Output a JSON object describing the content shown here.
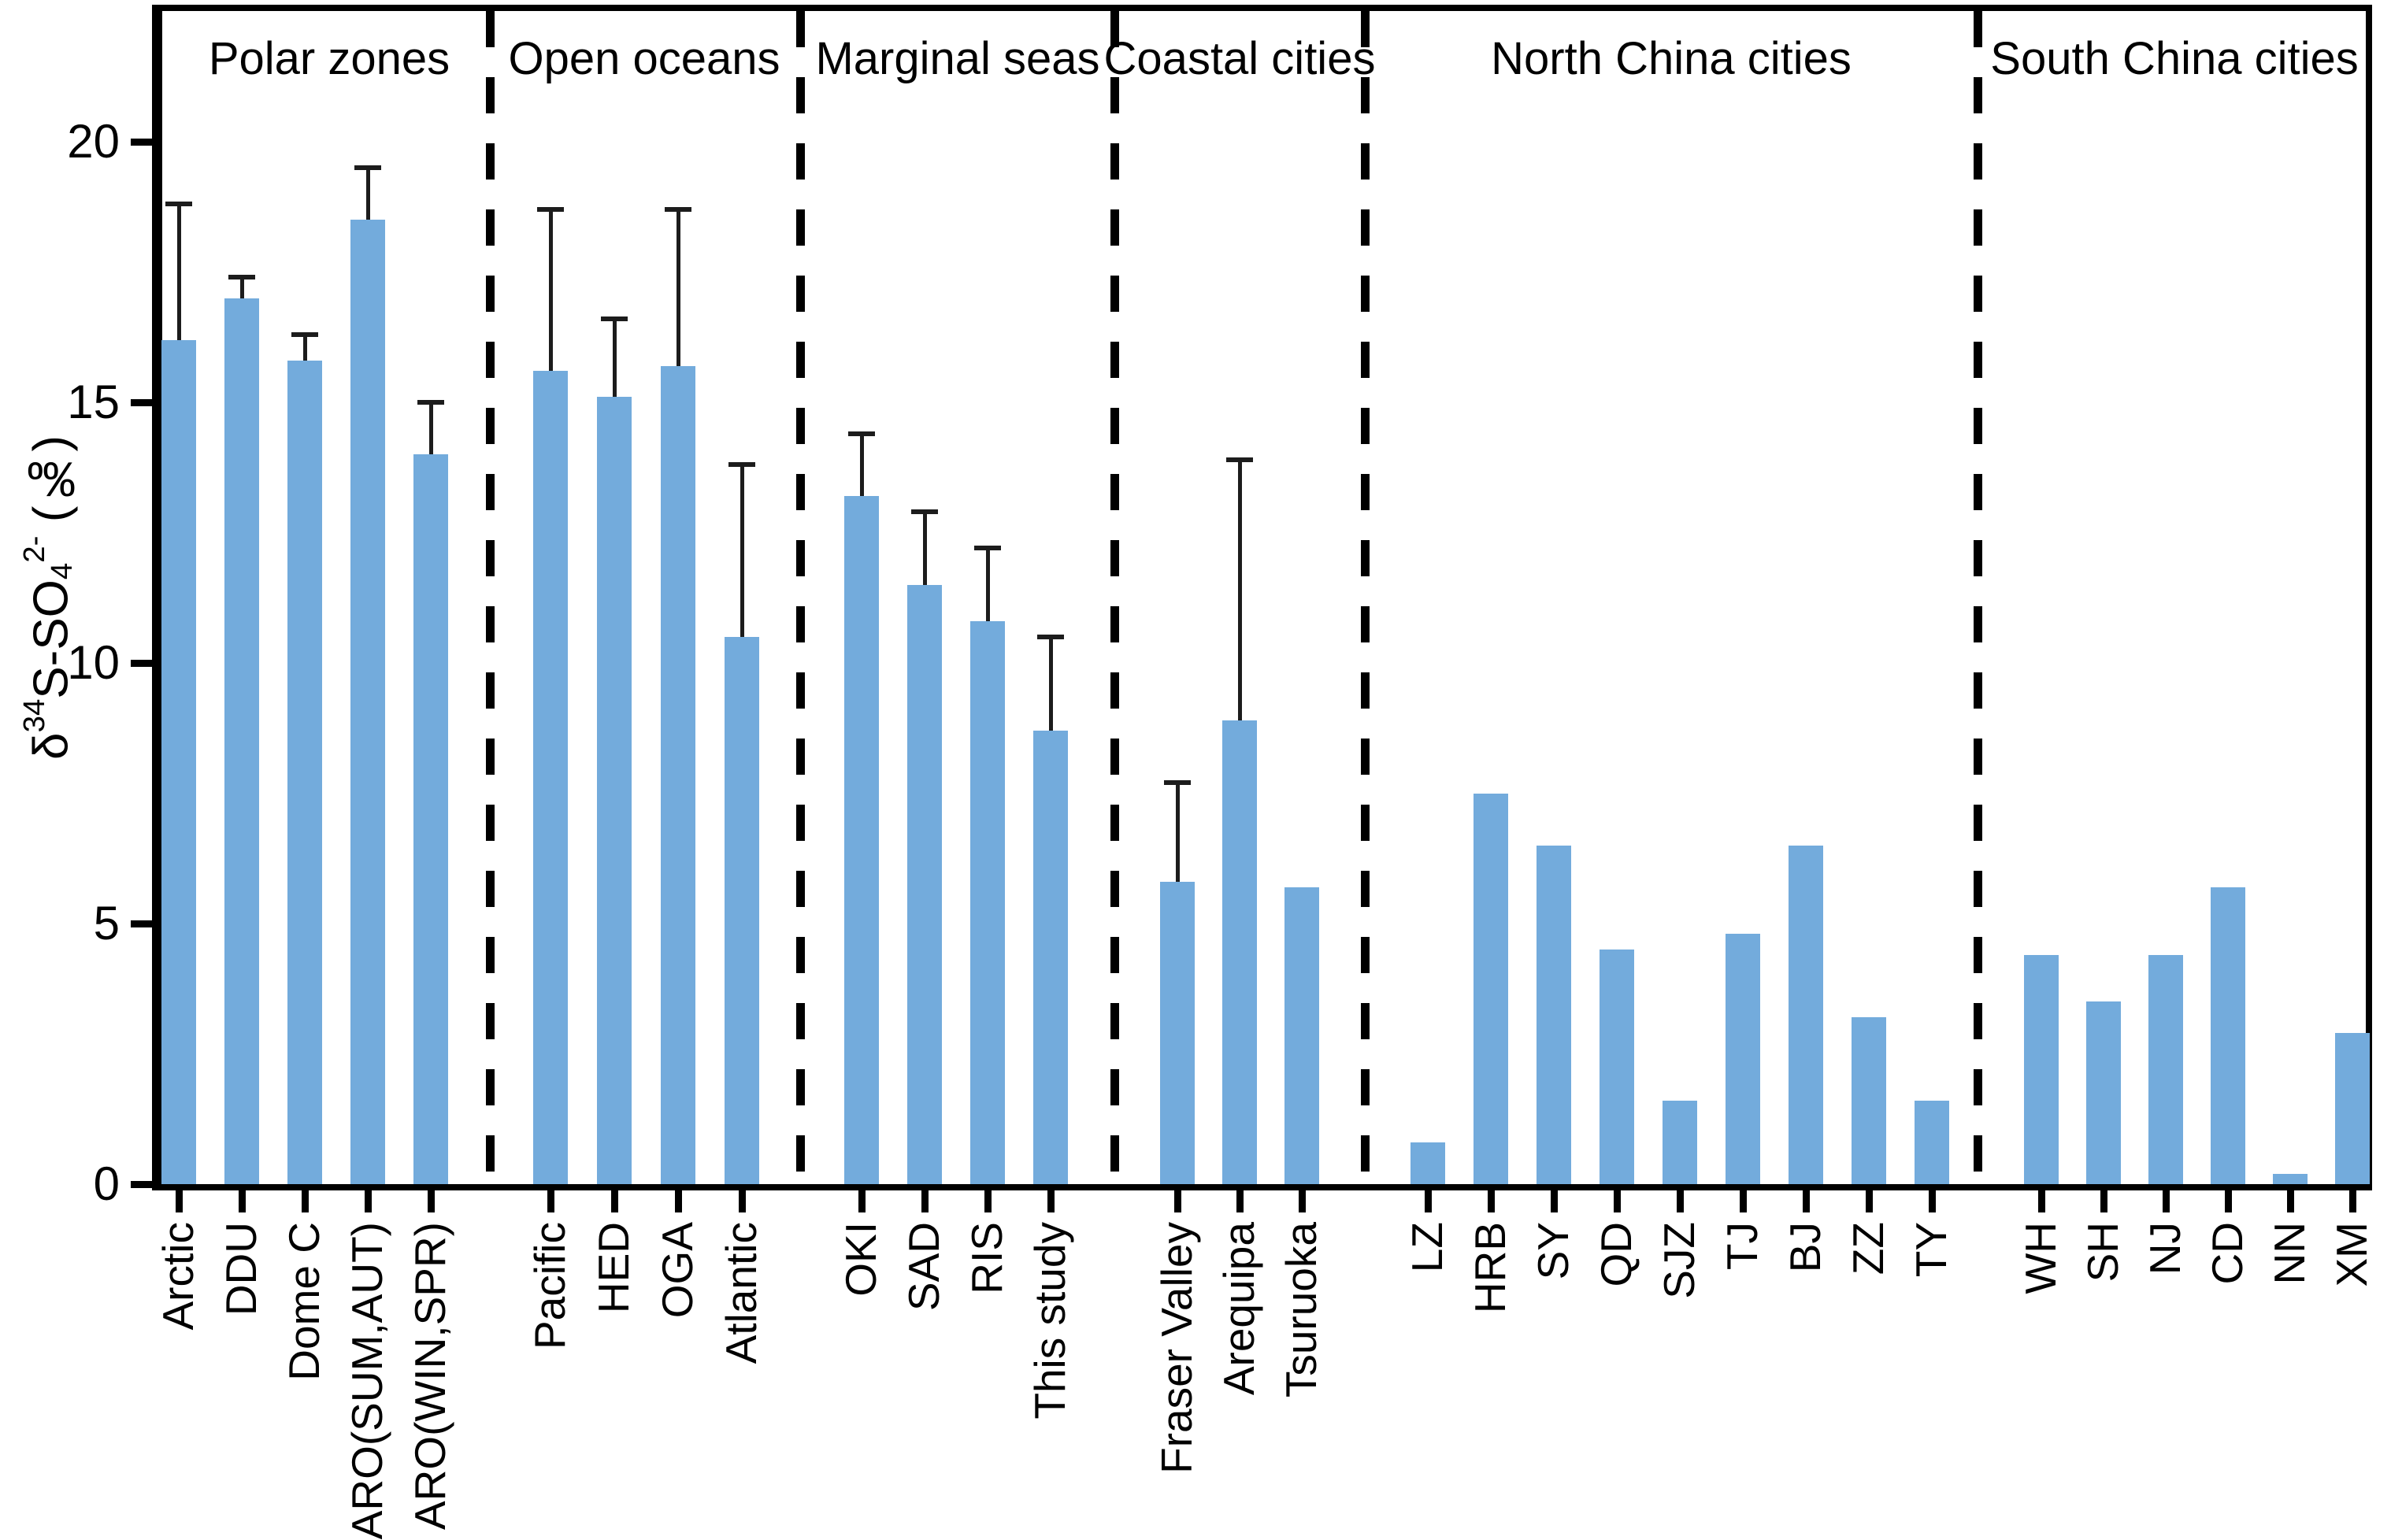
{
  "chart_data": {
    "type": "bar",
    "title": "",
    "xlabel": "",
    "ylabel": "δ34S-SO4 2- (‰)",
    "ylabel_parts": {
      "delta": "δ",
      "mass_sup": "34",
      "elem": "S-SO",
      "sub": "4",
      "charge_sup": "2-",
      "unit": " (‰)"
    },
    "ylim": [
      0,
      22.5
    ],
    "yticks": [
      "0",
      "5",
      "10",
      "15",
      "20"
    ],
    "grid": "off",
    "legend": "none",
    "bar_color": "#73ABDC",
    "error_color": "#1c1c1c",
    "groups": [
      {
        "name": "Polar zones",
        "bars": [
          {
            "label": "Arctic",
            "value": 16.2,
            "err_top": 18.8
          },
          {
            "label": "DDU",
            "value": 17.0,
            "err_top": 17.4
          },
          {
            "label": "Dome C",
            "value": 15.8,
            "err_top": 16.3
          },
          {
            "label": "ARO(SUM,AUT)",
            "value": 18.5,
            "err_top": 19.5
          },
          {
            "label": "ARO(WIN,SPR)",
            "value": 14.0,
            "err_top": 15.0
          }
        ]
      },
      {
        "name": "Open oceans",
        "bars": [
          {
            "label": "Pacific",
            "value": 15.6,
            "err_top": 18.7
          },
          {
            "label": "HED",
            "value": 15.1,
            "err_top": 16.6
          },
          {
            "label": "OGA",
            "value": 15.7,
            "err_top": 18.7
          },
          {
            "label": "Atlantic",
            "value": 10.5,
            "err_top": 13.8
          }
        ]
      },
      {
        "name": "Marginal seas",
        "bars": [
          {
            "label": "OKI",
            "value": 13.2,
            "err_top": 14.4
          },
          {
            "label": "SAD",
            "value": 11.5,
            "err_top": 12.9
          },
          {
            "label": "RIS",
            "value": 10.8,
            "err_top": 12.2
          },
          {
            "label": "This study",
            "value": 8.7,
            "err_top": 10.5
          }
        ]
      },
      {
        "name": "Coastal cities",
        "bars": [
          {
            "label": "Fraser Valley",
            "value": 5.8,
            "err_top": 7.7
          },
          {
            "label": "Arequipa",
            "value": 8.9,
            "err_top": 13.9
          },
          {
            "label": "Tsuruoka",
            "value": 5.7,
            "err_top": null
          }
        ]
      },
      {
        "name": "North China cities",
        "bars": [
          {
            "label": "LZ",
            "value": 0.8,
            "err_top": null
          },
          {
            "label": "HRB",
            "value": 7.5,
            "err_top": null
          },
          {
            "label": "SY",
            "value": 6.5,
            "err_top": null
          },
          {
            "label": "QD",
            "value": 4.5,
            "err_top": null
          },
          {
            "label": "SJZ",
            "value": 1.6,
            "err_top": null
          },
          {
            "label": "TJ",
            "value": 4.8,
            "err_top": null
          },
          {
            "label": "BJ",
            "value": 6.5,
            "err_top": null
          },
          {
            "label": "ZZ",
            "value": 3.2,
            "err_top": null
          },
          {
            "label": "TY",
            "value": 1.6,
            "err_top": null
          }
        ]
      },
      {
        "name": "South China cities",
        "bars": [
          {
            "label": "WH",
            "value": 4.4,
            "err_top": null
          },
          {
            "label": "SH",
            "value": 3.5,
            "err_top": null
          },
          {
            "label": "NJ",
            "value": 4.4,
            "err_top": null
          },
          {
            "label": "CD",
            "value": 5.7,
            "err_top": null
          },
          {
            "label": "NN",
            "value": 0.2,
            "err_top": null
          },
          {
            "label": "XM",
            "value": 2.9,
            "err_top": null
          }
        ]
      }
    ]
  }
}
